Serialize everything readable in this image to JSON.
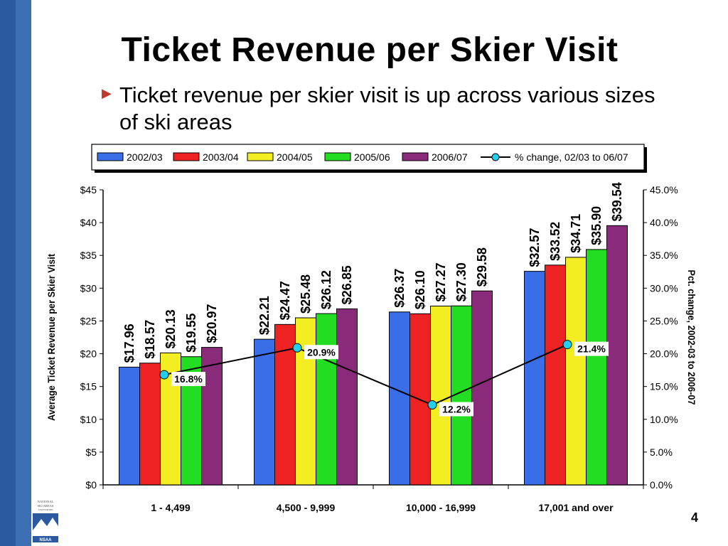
{
  "slide": {
    "title": "Ticket Revenue per Skier Visit",
    "bullet": "Ticket revenue per skier visit is up across various sizes of ski areas",
    "page_number": "4",
    "logo_text": [
      "NATIONAL",
      "SKI AREAS",
      "ASSOCIATION",
      "NSAA"
    ]
  },
  "colors": {
    "sidebar": "#3c6fb4",
    "bullet": "#c0392b",
    "line": "#000000",
    "marker": "#20d0f0"
  },
  "chart_data": {
    "type": "bar",
    "categories": [
      "1 - 4,499",
      "4,500 - 9,999",
      "10,000 - 16,999",
      "17,001 and over"
    ],
    "series": [
      {
        "name": "2002/03",
        "color": "#3a6ee8",
        "values": [
          17.96,
          22.21,
          26.37,
          32.57
        ],
        "labels": [
          "$17.96",
          "$22.21",
          "$26.37",
          "$32.57"
        ]
      },
      {
        "name": "2003/04",
        "color": "#ee2222",
        "values": [
          18.57,
          24.47,
          26.1,
          33.52
        ],
        "labels": [
          "$18.57",
          "$24.47",
          "$26.10",
          "$33.52"
        ]
      },
      {
        "name": "2004/05",
        "color": "#f2ee22",
        "values": [
          20.13,
          25.48,
          27.27,
          34.71
        ],
        "labels": [
          "$20.13",
          "$25.48",
          "$27.27",
          "$34.71"
        ]
      },
      {
        "name": "2005/06",
        "color": "#22dd22",
        "values": [
          19.55,
          26.12,
          27.3,
          35.9
        ],
        "labels": [
          "$19.55",
          "$26.12",
          "$27.30",
          "$35.90"
        ]
      },
      {
        "name": "2006/07",
        "color": "#8a2a7a",
        "values": [
          20.97,
          26.85,
          29.58,
          39.54
        ],
        "labels": [
          "$20.97",
          "$26.85",
          "$29.58",
          "$39.54"
        ]
      }
    ],
    "line_series": {
      "name": "% change, 02/03 to 06/07",
      "values": [
        16.8,
        20.9,
        12.2,
        21.4
      ],
      "labels": [
        "16.8%",
        "20.9%",
        "12.2%",
        "21.4%"
      ]
    },
    "ylabel": "Average Ticket Revenue per Skier Visit",
    "y2label": "Pct. change, 2002-03 to 2006-07",
    "ylim": [
      0,
      45
    ],
    "y2lim": [
      0,
      45
    ],
    "yticks": [
      "$0",
      "$5",
      "$10",
      "$15",
      "$20",
      "$25",
      "$30",
      "$35",
      "$40",
      "$45"
    ],
    "y2ticks": [
      "0.0%",
      "5.0%",
      "10.0%",
      "15.0%",
      "20.0%",
      "25.0%",
      "30.0%",
      "35.0%",
      "40.0%",
      "45.0%"
    ],
    "legend_position": "top",
    "grid": false
  }
}
